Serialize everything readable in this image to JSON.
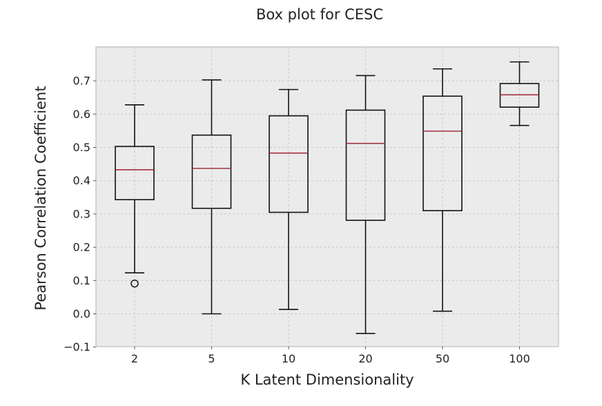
{
  "chart_data": {
    "type": "box",
    "title": "Box plot for CESC",
    "xlabel": "K Latent Dimensionality",
    "ylabel": "Pearson Correlation Coefficient",
    "ylim": [
      -0.1,
      0.8
    ],
    "yticks": [
      "0.7",
      "0.6",
      "0.5",
      "0.4",
      "0.3",
      "0.2",
      "0.1",
      "0.0",
      "−0.1"
    ],
    "ytick_values": [
      0.7,
      0.6,
      0.5,
      0.4,
      0.3,
      0.2,
      0.1,
      0.0,
      -0.1
    ],
    "grid": true,
    "categories": [
      "2",
      "5",
      "10",
      "20",
      "50",
      "100"
    ],
    "boxes": [
      {
        "whisker_low": 0.123,
        "q1": 0.343,
        "median": 0.433,
        "q3": 0.503,
        "whisker_high": 0.628,
        "outliers": [
          0.091
        ]
      },
      {
        "whisker_low": 0.0,
        "q1": 0.317,
        "median": 0.437,
        "q3": 0.537,
        "whisker_high": 0.703,
        "outliers": []
      },
      {
        "whisker_low": 0.013,
        "q1": 0.305,
        "median": 0.483,
        "q3": 0.595,
        "whisker_high": 0.674,
        "outliers": []
      },
      {
        "whisker_low": -0.059,
        "q1": 0.281,
        "median": 0.512,
        "q3": 0.612,
        "whisker_high": 0.716,
        "outliers": []
      },
      {
        "whisker_low": 0.008,
        "q1": 0.31,
        "median": 0.549,
        "q3": 0.654,
        "whisker_high": 0.736,
        "outliers": []
      },
      {
        "whisker_low": 0.566,
        "q1": 0.621,
        "median": 0.658,
        "q3": 0.692,
        "whisker_high": 0.757,
        "outliers": []
      }
    ],
    "colors": {
      "plot_background": "#ebebeb",
      "frame": "#bcbcbc",
      "box": "#111111",
      "median": "#a0303c",
      "grid": "#c8c8c8"
    }
  }
}
